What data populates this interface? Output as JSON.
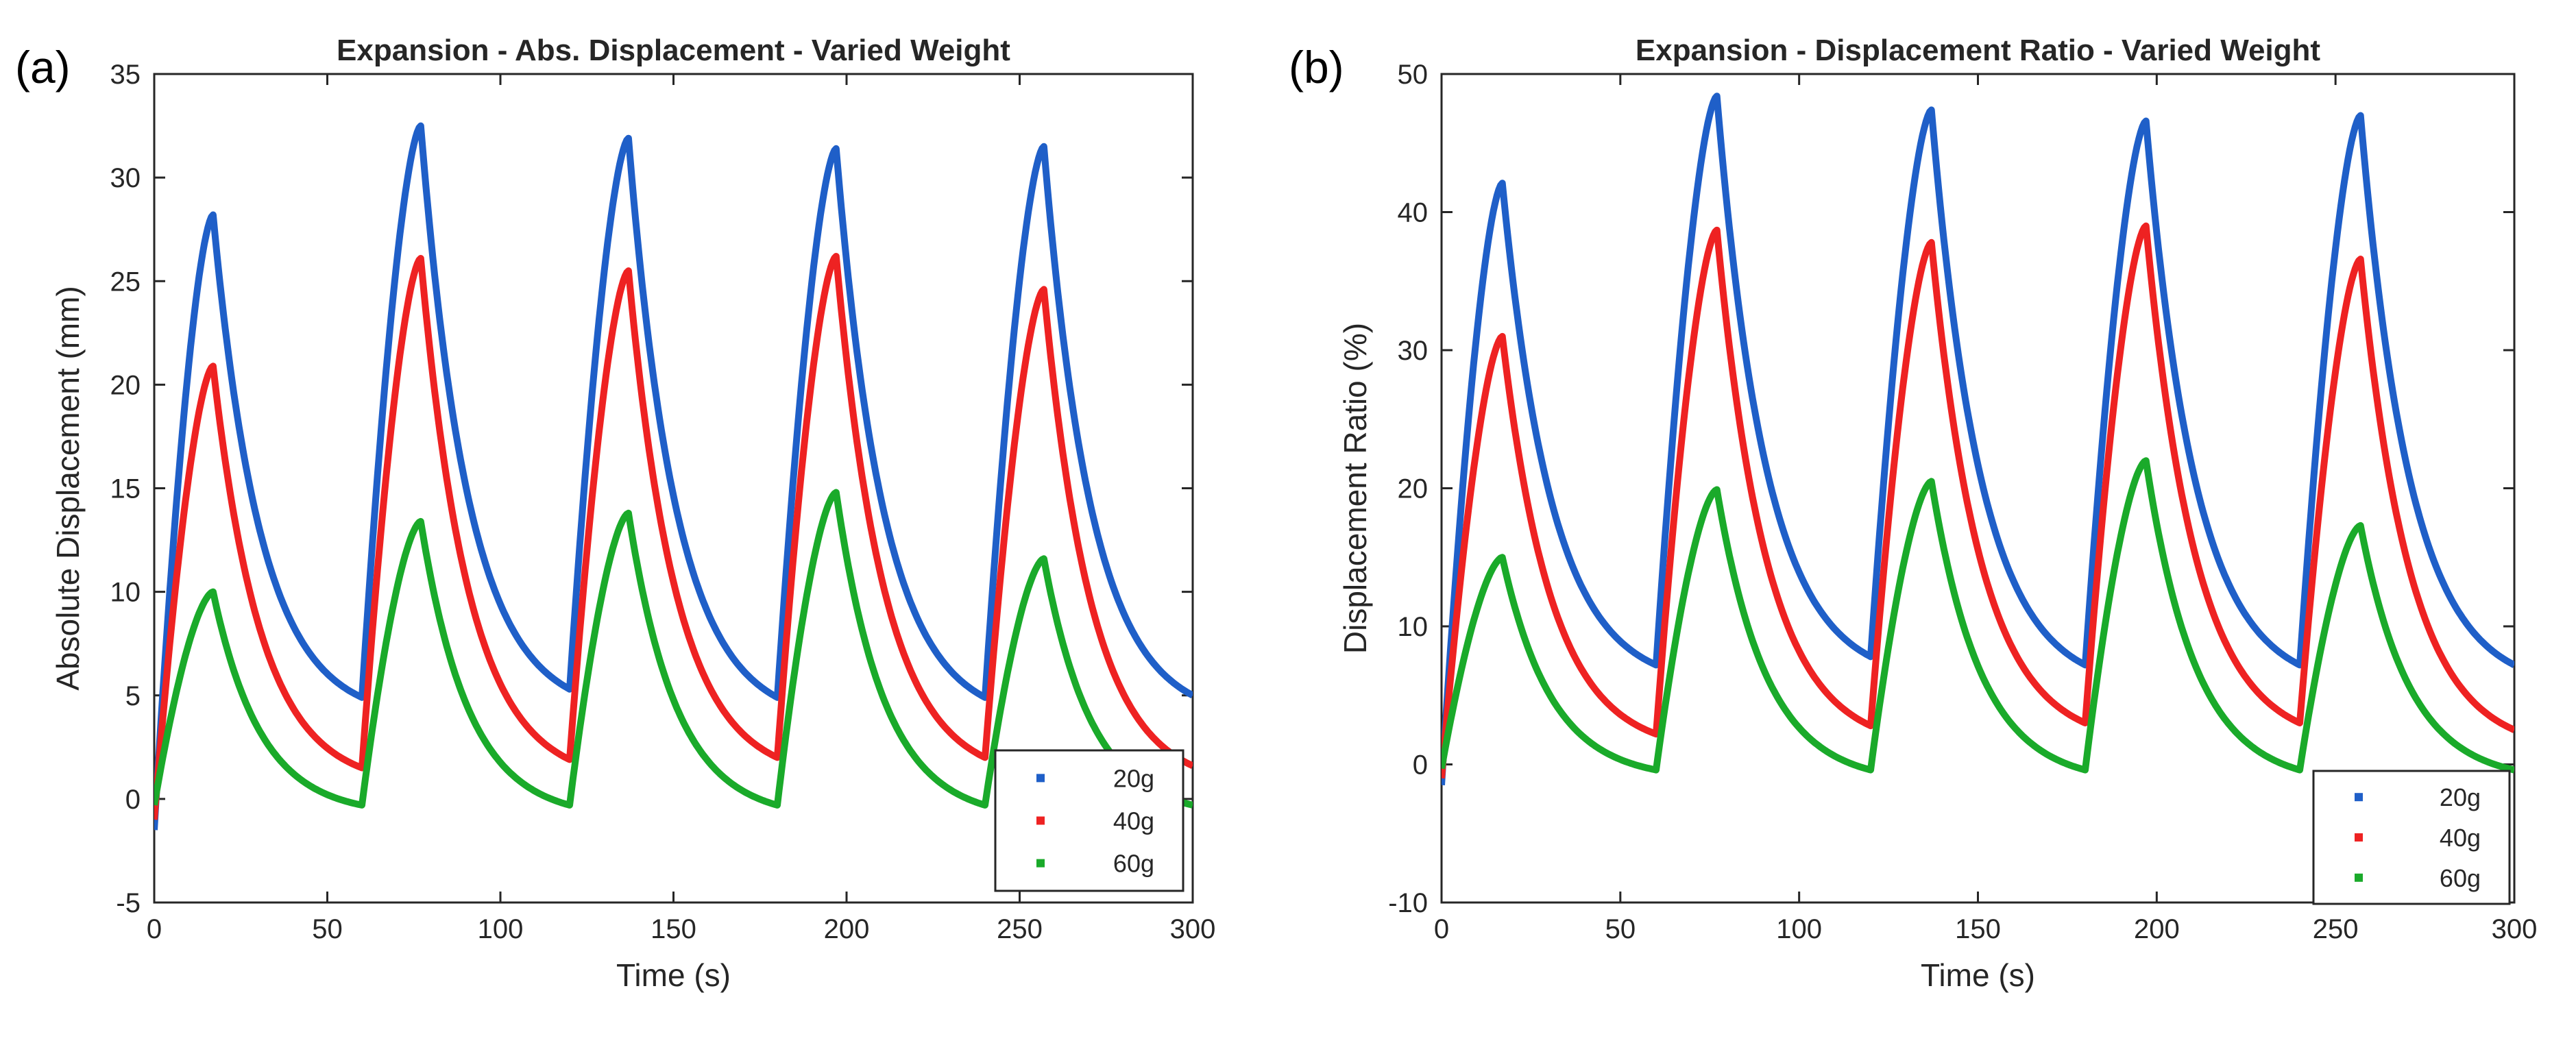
{
  "figure": {
    "panel_a_label": "(a)",
    "panel_b_label": "(b)"
  },
  "chart_data": [
    {
      "id": "a",
      "type": "line",
      "title": "Expansion - Abs. Displacement - Varied Weight",
      "xlabel": "Time (s)",
      "ylabel": "Absolute Displacement (mm)",
      "xlim": [
        0,
        300
      ],
      "ylim": [
        -5,
        35
      ],
      "xticks": [
        0,
        50,
        100,
        150,
        200,
        250,
        300
      ],
      "yticks": [
        -5,
        0,
        5,
        10,
        15,
        20,
        25,
        30,
        35
      ],
      "grid": false,
      "legend": "bottom-right",
      "cycle_period": 60,
      "peak_time_in_cycle": 17,
      "series": [
        {
          "name": "20g",
          "color": "#1f5fc8",
          "start": -1.5,
          "peaks": [
            28.2,
            32.5,
            31.9,
            31.4,
            31.5
          ],
          "troughs": [
            4.9,
            5.3,
            4.9,
            4.9,
            5.0
          ]
        },
        {
          "name": "40g",
          "color": "#ee2222",
          "start": -1.0,
          "peaks": [
            20.9,
            26.1,
            25.5,
            26.2,
            24.6
          ],
          "troughs": [
            1.5,
            1.9,
            2.0,
            2.0,
            1.6
          ]
        },
        {
          "name": "60g",
          "color": "#1aaa2a",
          "start": -0.3,
          "peaks": [
            10.0,
            13.4,
            13.8,
            14.8,
            11.6
          ],
          "troughs": [
            -0.3,
            -0.3,
            -0.3,
            -0.3,
            -0.3
          ]
        }
      ]
    },
    {
      "id": "b",
      "type": "line",
      "title": "Expansion - Displacement Ratio - Varied Weight",
      "xlabel": "Time (s)",
      "ylabel": "Displacement Ratio (%)",
      "xlim": [
        0,
        300
      ],
      "ylim": [
        -10,
        50
      ],
      "xticks": [
        0,
        50,
        100,
        150,
        200,
        250,
        300
      ],
      "yticks": [
        -10,
        0,
        10,
        20,
        30,
        40,
        50
      ],
      "grid": false,
      "legend": "bottom-right",
      "cycle_period": 60,
      "peak_time_in_cycle": 17,
      "series": [
        {
          "name": "20g",
          "color": "#1f5fc8",
          "start": -1.5,
          "peaks": [
            42.1,
            48.4,
            47.4,
            46.6,
            47.0
          ],
          "troughs": [
            7.2,
            7.8,
            7.2,
            7.2,
            7.2
          ]
        },
        {
          "name": "40g",
          "color": "#ee2222",
          "start": -1.0,
          "peaks": [
            31.0,
            38.7,
            37.8,
            39.0,
            36.6
          ],
          "troughs": [
            2.2,
            2.8,
            3.0,
            3.0,
            2.5
          ]
        },
        {
          "name": "60g",
          "color": "#1aaa2a",
          "start": -0.3,
          "peaks": [
            15.0,
            19.9,
            20.5,
            22.0,
            17.3
          ],
          "troughs": [
            -0.4,
            -0.4,
            -0.4,
            -0.4,
            -0.4
          ]
        }
      ]
    }
  ]
}
